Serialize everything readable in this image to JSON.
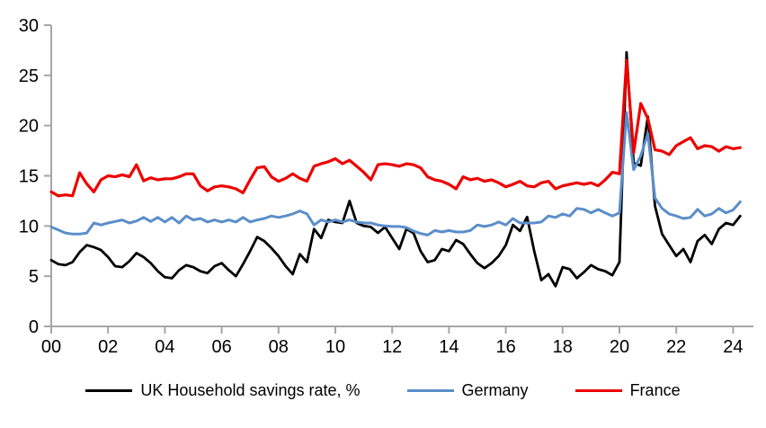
{
  "chart_data": {
    "type": "line",
    "title": "",
    "xlabel": "",
    "ylabel": "",
    "x_start": 2000,
    "x_step": 0.25,
    "x_note": "quarterly data, 2000Q1 - 2024Q2",
    "ylim": [
      0,
      30
    ],
    "y_ticks": [
      30,
      25,
      20,
      15,
      10,
      5,
      0
    ],
    "x_tick_labels": [
      "00",
      "02",
      "04",
      "06",
      "08",
      "10",
      "12",
      "14",
      "16",
      "18",
      "20",
      "22",
      "24"
    ],
    "grid": false,
    "legend_position": "bottom",
    "axis_color": "#a6a6a6",
    "series": [
      {
        "name": "UK Household savings rate, %",
        "color": "#000000",
        "stroke_width": 2.8,
        "values": [
          6.6,
          6.2,
          6.1,
          6.4,
          7.4,
          8.1,
          7.9,
          7.6,
          6.9,
          6.0,
          5.9,
          6.5,
          7.3,
          6.9,
          6.3,
          5.5,
          4.9,
          4.8,
          5.6,
          6.1,
          5.9,
          5.5,
          5.3,
          6.0,
          6.3,
          5.6,
          5.0,
          6.2,
          7.5,
          8.9,
          8.5,
          7.8,
          7.0,
          6.0,
          5.2,
          7.2,
          6.4,
          9.7,
          8.8,
          10.6,
          10.4,
          10.3,
          12.5,
          10.3,
          10.0,
          9.9,
          9.3,
          9.9,
          8.8,
          7.7,
          9.7,
          9.3,
          7.5,
          6.4,
          6.6,
          7.7,
          7.5,
          8.6,
          8.2,
          7.2,
          6.3,
          5.8,
          6.3,
          7.0,
          8.1,
          10.1,
          9.5,
          10.9,
          7.5,
          4.6,
          5.2,
          4.0,
          5.9,
          5.7,
          4.8,
          5.4,
          6.1,
          5.7,
          5.5,
          5.1,
          6.4,
          27.3,
          16.3,
          16.0,
          20.9,
          12.0,
          9.2,
          8.1,
          7.0,
          7.7,
          6.4,
          8.5,
          9.1,
          8.2,
          9.7,
          10.3,
          10.1,
          11.0
        ]
      },
      {
        "name": "Germany",
        "color": "#5b8ec9",
        "stroke_width": 3.0,
        "values": [
          9.9,
          9.6,
          9.3,
          9.2,
          9.2,
          9.3,
          10.3,
          10.1,
          10.3,
          10.45,
          10.6,
          10.3,
          10.5,
          10.85,
          10.45,
          10.85,
          10.4,
          10.85,
          10.3,
          11.0,
          10.6,
          10.75,
          10.4,
          10.6,
          10.4,
          10.6,
          10.4,
          10.85,
          10.4,
          10.6,
          10.75,
          11.0,
          10.85,
          11.0,
          11.2,
          11.5,
          11.2,
          10.1,
          10.6,
          10.4,
          10.6,
          10.4,
          10.6,
          10.4,
          10.3,
          10.3,
          10.1,
          10.0,
          9.95,
          9.95,
          9.85,
          9.5,
          9.25,
          9.1,
          9.55,
          9.4,
          9.55,
          9.4,
          9.4,
          9.55,
          10.1,
          9.95,
          10.1,
          10.4,
          10.1,
          10.75,
          10.3,
          10.3,
          10.3,
          10.4,
          11.0,
          10.85,
          11.2,
          11.0,
          11.75,
          11.65,
          11.3,
          11.65,
          11.3,
          11.0,
          11.3,
          21.3,
          15.6,
          17.0,
          19.2,
          12.8,
          11.75,
          11.2,
          11.0,
          10.75,
          10.85,
          11.65,
          11.0,
          11.2,
          11.75,
          11.3,
          11.6,
          12.4
        ]
      },
      {
        "name": "France",
        "color": "#ee0000",
        "stroke_width": 3.2,
        "values": [
          13.4,
          13.0,
          13.1,
          13.0,
          15.3,
          14.2,
          13.4,
          14.6,
          15.0,
          14.9,
          15.1,
          14.9,
          16.1,
          14.5,
          14.8,
          14.6,
          14.7,
          14.7,
          14.9,
          15.2,
          15.2,
          14.0,
          13.5,
          13.9,
          14.0,
          13.9,
          13.7,
          13.3,
          14.6,
          15.8,
          15.9,
          14.9,
          14.45,
          14.75,
          15.2,
          14.75,
          14.45,
          15.95,
          16.2,
          16.4,
          16.7,
          16.2,
          16.55,
          15.95,
          15.35,
          14.6,
          16.1,
          16.2,
          16.1,
          15.95,
          16.2,
          16.1,
          15.8,
          14.9,
          14.6,
          14.45,
          14.15,
          13.7,
          14.9,
          14.6,
          14.75,
          14.45,
          14.6,
          14.3,
          13.9,
          14.15,
          14.45,
          14.0,
          13.9,
          14.3,
          14.45,
          13.7,
          14.0,
          14.15,
          14.3,
          14.15,
          14.3,
          14.0,
          14.6,
          15.35,
          15.2,
          26.5,
          17.3,
          22.2,
          20.7,
          17.6,
          17.45,
          17.1,
          18.0,
          18.4,
          18.8,
          17.7,
          18.0,
          17.9,
          17.45,
          17.9,
          17.7,
          17.8
        ]
      }
    ]
  }
}
